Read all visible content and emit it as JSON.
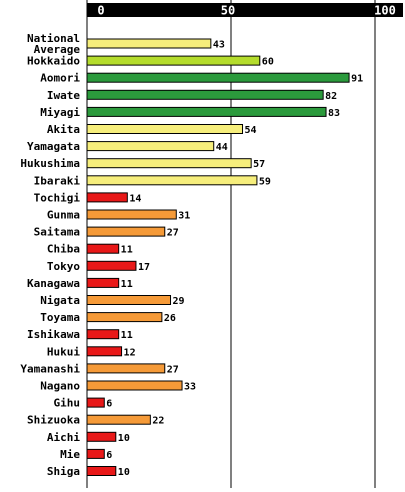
{
  "chart_data": {
    "type": "bar",
    "orientation": "horizontal",
    "xlim": [
      0,
      100
    ],
    "grid": true,
    "ticks": [
      {
        "value": 0,
        "label": "0"
      },
      {
        "value": 50,
        "label": "50"
      },
      {
        "value": 100,
        "label": "100"
      }
    ],
    "colors": {
      "red": "#e81818",
      "orange": "#f59a38",
      "yellow": "#f6ee7c",
      "lightgreen": "#b4dc2c",
      "green": "#2b9a3c",
      "axis_bar": "#000000",
      "grid": "#000000"
    },
    "categories": [
      {
        "label_lines": [
          "National",
          "Average"
        ],
        "value": 43,
        "value_label": "43",
        "color": "yellow"
      },
      {
        "label_lines": [
          "Hokkaido"
        ],
        "value": 60,
        "value_label": "60",
        "color": "lightgreen"
      },
      {
        "label_lines": [
          "Aomori"
        ],
        "value": 91,
        "value_label": "91",
        "color": "green"
      },
      {
        "label_lines": [
          "Iwate"
        ],
        "value": 82,
        "value_label": "82",
        "color": "green"
      },
      {
        "label_lines": [
          "Miyagi"
        ],
        "value": 83,
        "value_label": "83",
        "color": "green"
      },
      {
        "label_lines": [
          "Akita"
        ],
        "value": 54,
        "value_label": "54",
        "color": "yellow"
      },
      {
        "label_lines": [
          "Yamagata"
        ],
        "value": 44,
        "value_label": "44",
        "color": "yellow"
      },
      {
        "label_lines": [
          "Hukushima"
        ],
        "value": 57,
        "value_label": "57",
        "color": "yellow"
      },
      {
        "label_lines": [
          "Ibaraki"
        ],
        "value": 59,
        "value_label": "59",
        "color": "yellow"
      },
      {
        "label_lines": [
          "Tochigi"
        ],
        "value": 14,
        "value_label": "14",
        "color": "red"
      },
      {
        "label_lines": [
          "Gunma"
        ],
        "value": 31,
        "value_label": "31",
        "color": "orange"
      },
      {
        "label_lines": [
          "Saitama"
        ],
        "value": 27,
        "value_label": "27",
        "color": "orange"
      },
      {
        "label_lines": [
          "Chiba"
        ],
        "value": 11,
        "value_label": "11",
        "color": "red"
      },
      {
        "label_lines": [
          "Tokyo"
        ],
        "value": 17,
        "value_label": "17",
        "color": "red"
      },
      {
        "label_lines": [
          "Kanagawa"
        ],
        "value": 11,
        "value_label": "11",
        "color": "red"
      },
      {
        "label_lines": [
          "Nigata"
        ],
        "value": 29,
        "value_label": "29",
        "color": "orange"
      },
      {
        "label_lines": [
          "Toyama"
        ],
        "value": 26,
        "value_label": "26",
        "color": "orange"
      },
      {
        "label_lines": [
          "Ishikawa"
        ],
        "value": 11,
        "value_label": "11",
        "color": "red"
      },
      {
        "label_lines": [
          "Hukui"
        ],
        "value": 12,
        "value_label": "12",
        "color": "red"
      },
      {
        "label_lines": [
          "Yamanashi"
        ],
        "value": 27,
        "value_label": "27",
        "color": "orange"
      },
      {
        "label_lines": [
          "Nagano"
        ],
        "value": 33,
        "value_label": "33",
        "color": "orange"
      },
      {
        "label_lines": [
          "Gihu"
        ],
        "value": 6,
        "value_label": "6",
        "color": "red"
      },
      {
        "label_lines": [
          "Shizuoka"
        ],
        "value": 22,
        "value_label": "22",
        "color": "orange"
      },
      {
        "label_lines": [
          "Aichi"
        ],
        "value": 10,
        "value_label": "10",
        "color": "red"
      },
      {
        "label_lines": [
          "Mie"
        ],
        "value": 6,
        "value_label": "6",
        "color": "red"
      },
      {
        "label_lines": [
          "Shiga"
        ],
        "value": 10,
        "value_label": "10",
        "color": "red"
      }
    ]
  }
}
